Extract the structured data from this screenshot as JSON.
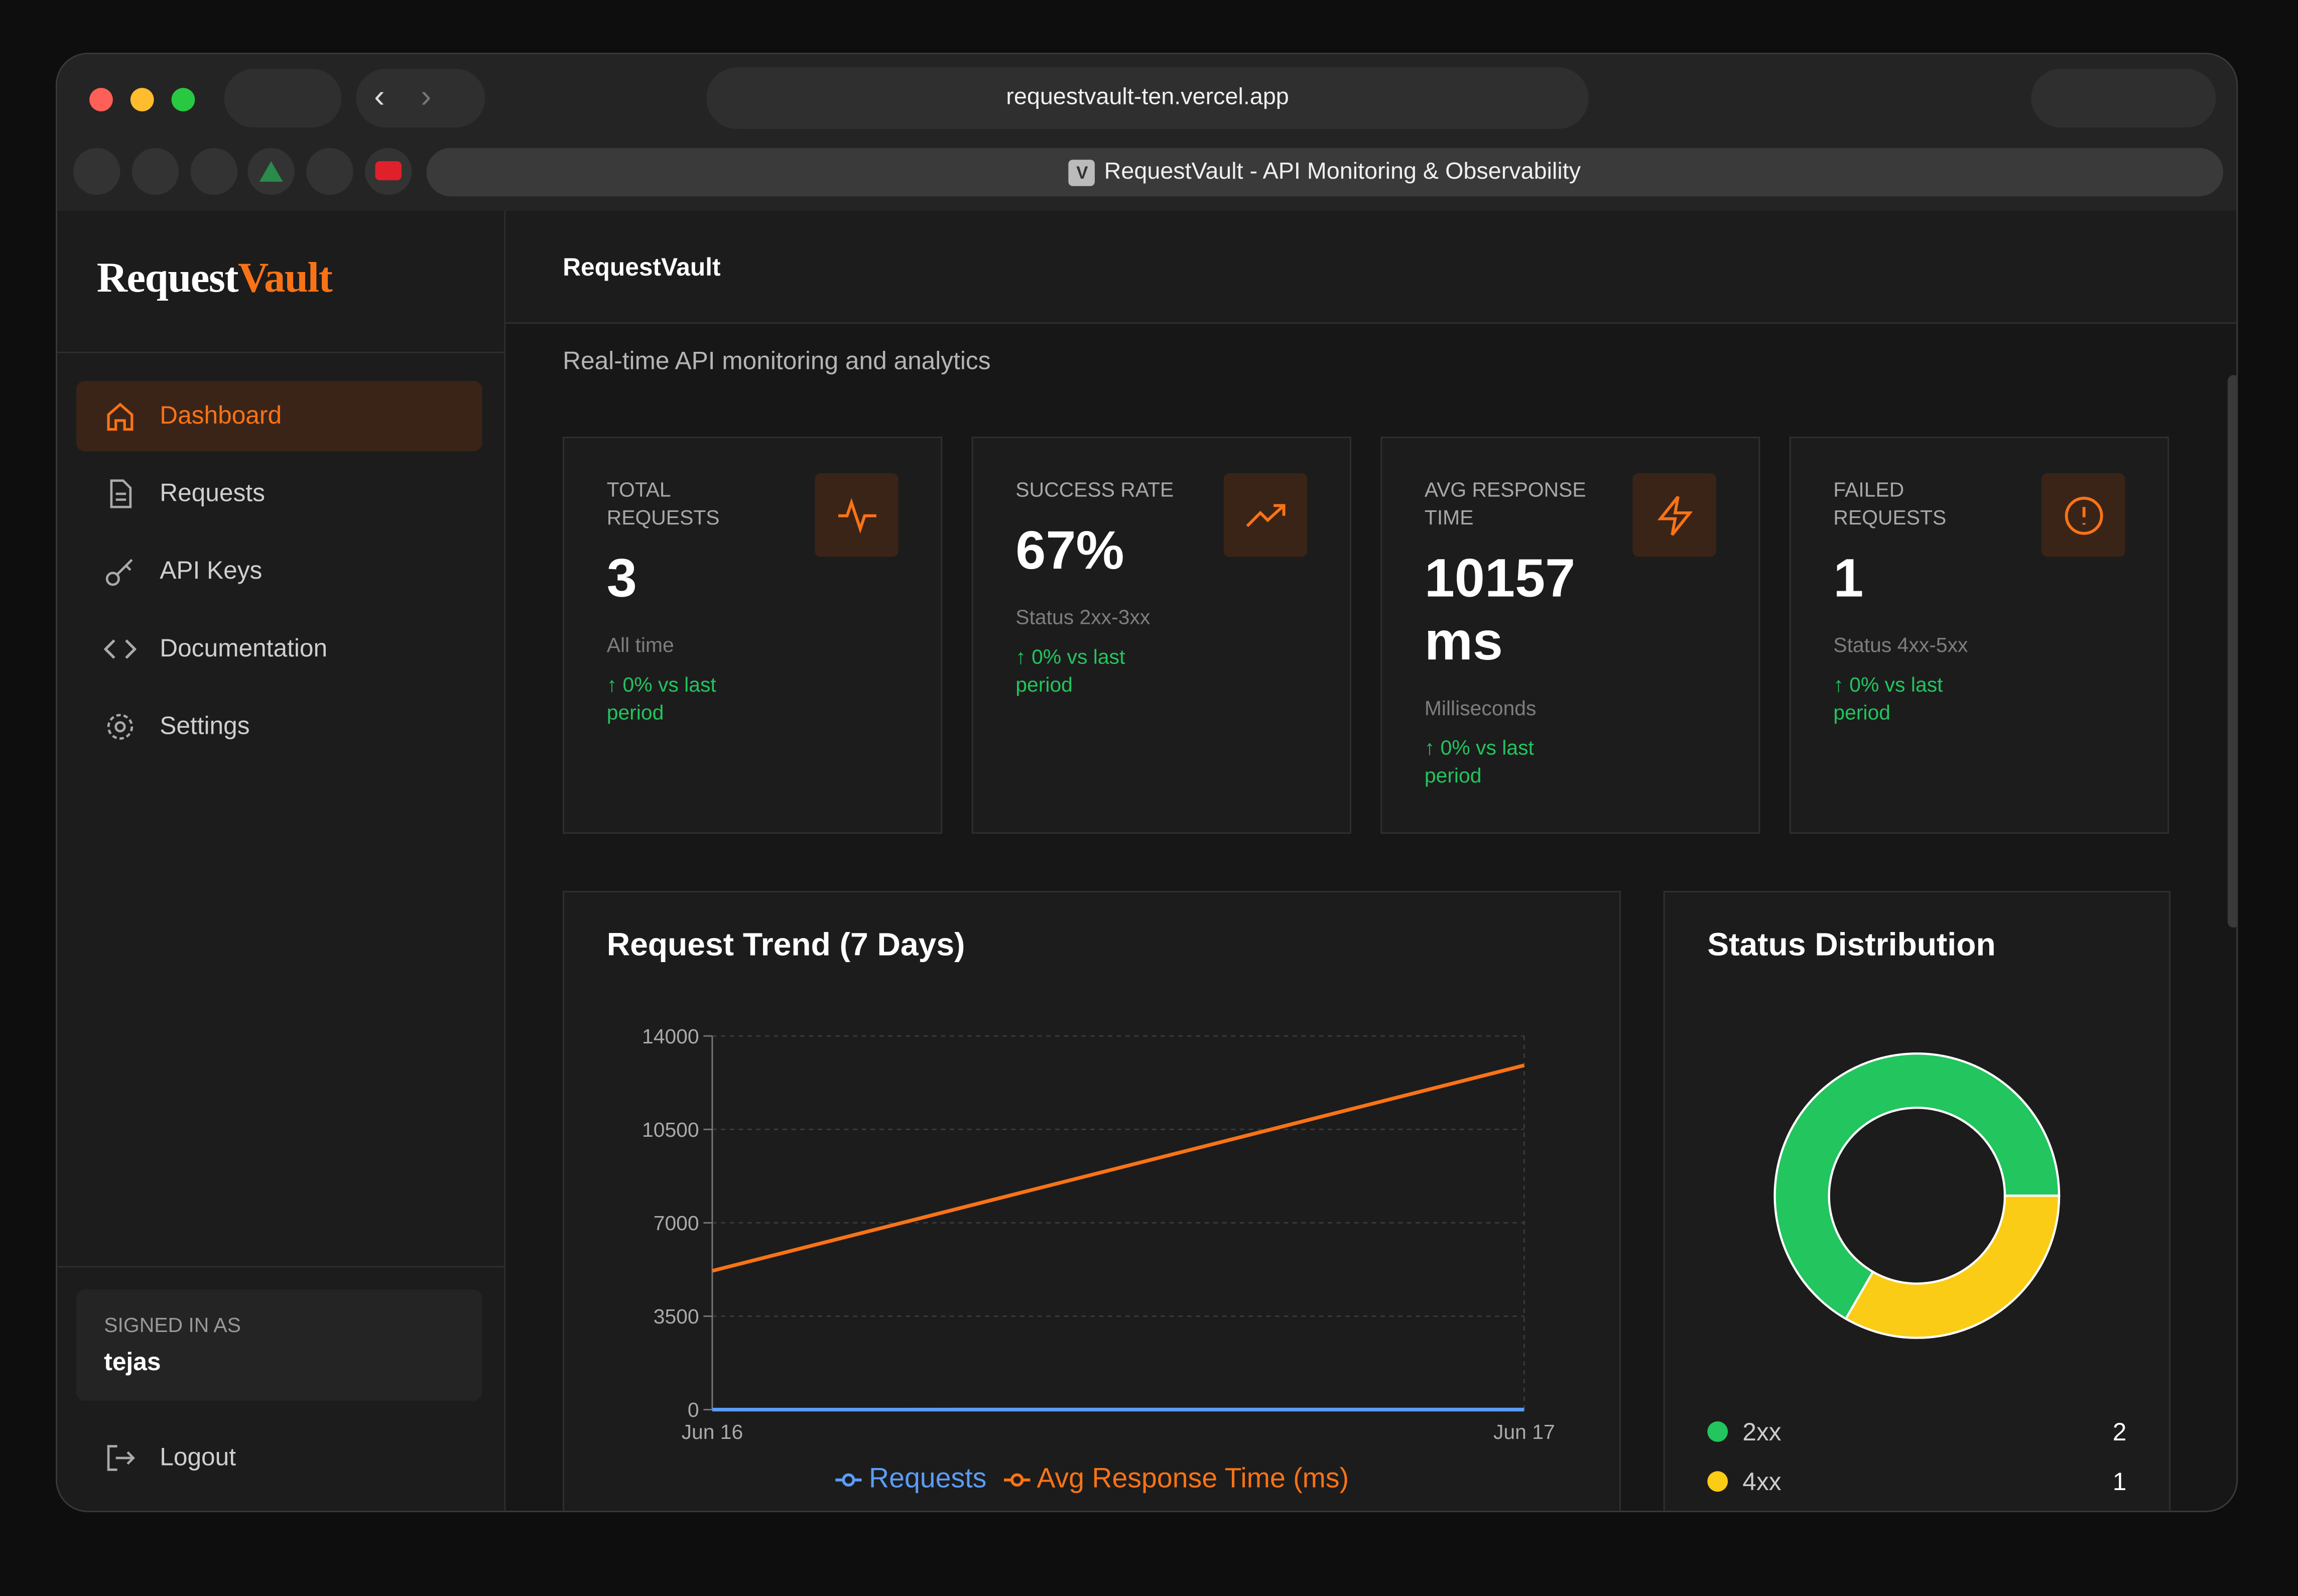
{
  "browser": {
    "url": "requestvault-ten.vercel.app",
    "tab_title": "RequestVault - API Monitoring & Observability",
    "tab_icon": "V"
  },
  "sidebar": {
    "brand_part1": "Request",
    "brand_part2": "Vault",
    "nav": [
      "Dashboard",
      "Requests",
      "API Keys",
      "Documentation",
      "Settings"
    ],
    "signed_in_label": "SIGNED IN AS",
    "username": "tejas",
    "logout": "Logout"
  },
  "header": {
    "title": "RequestVault",
    "subtitle": "Real-time API monitoring and analytics"
  },
  "stats": [
    {
      "label": "TOTAL REQUESTS",
      "value": "3",
      "caption": "All time",
      "change": "↑ 0% vs last period"
    },
    {
      "label": "SUCCESS RATE",
      "value": "67%",
      "caption": "Status 2xx-3xx",
      "change": "↑ 0% vs last period"
    },
    {
      "label": "AVG RESPONSE TIME",
      "value": "10157 ms",
      "caption": "Milliseconds",
      "change": "↑ 0% vs last period"
    },
    {
      "label": "FAILED REQUESTS",
      "value": "1",
      "caption": "Status 4xx-5xx",
      "change": "↑ 0% vs last period"
    }
  ],
  "chart_data": [
    {
      "type": "line",
      "title": "Request Trend (7 Days)",
      "categories": [
        "Jun 16",
        "Jun 17"
      ],
      "series": [
        {
          "name": "Requests",
          "color": "#5b9cf6",
          "values": [
            1,
            2
          ]
        },
        {
          "name": "Avg Response Time (ms)",
          "color": "#f97316",
          "values": [
            5200,
            12900
          ]
        }
      ],
      "ylim": [
        0,
        14000
      ],
      "yticks": [
        0,
        3500,
        7000,
        10500,
        14000
      ],
      "grid": true
    },
    {
      "type": "pie",
      "title": "Status Distribution",
      "categories": [
        "2xx",
        "4xx"
      ],
      "values": [
        2,
        1
      ],
      "colors": [
        "#22c55e",
        "#facc15"
      ]
    }
  ]
}
